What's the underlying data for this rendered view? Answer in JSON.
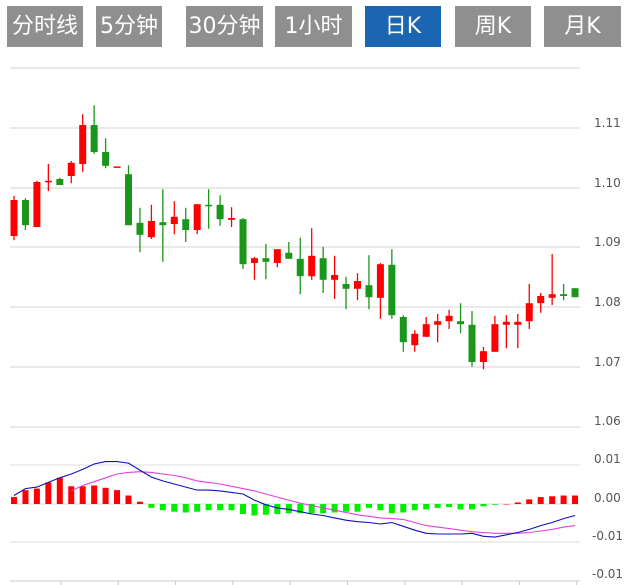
{
  "tabs": [
    {
      "label": "分时线",
      "active": false
    },
    {
      "label": "5分钟",
      "active": false
    },
    {
      "label": "30分钟",
      "active": false
    },
    {
      "label": "1小时",
      "active": false
    },
    {
      "label": "日K",
      "active": true
    },
    {
      "label": "周K",
      "active": false
    },
    {
      "label": "月K",
      "active": false
    }
  ],
  "colors": {
    "tab_bg": "#8f8f8f",
    "tab_active": "#1a66b3",
    "up": "#ff0000",
    "down": "#1a961a",
    "hist_down": "#00ee00",
    "dif": "#1010c0",
    "dea": "#e040e0"
  },
  "chart_data": [
    {
      "type": "candlestick",
      "ylim": [
        1.06,
        1.12
      ],
      "y_ticks": [
        "1.11",
        "1.10",
        "1.09",
        "1.08",
        "1.07",
        "1.06"
      ],
      "grid": true,
      "ohlc": [
        [
          1.092,
          1.0987,
          1.0913,
          1.098
        ],
        [
          1.098,
          1.0983,
          1.093,
          1.0938
        ],
        [
          1.0935,
          1.1012,
          1.0935,
          1.101
        ],
        [
          1.101,
          1.104,
          1.0995,
          1.1012
        ],
        [
          1.1015,
          1.1017,
          1.1005,
          1.1005
        ],
        [
          1.102,
          1.1045,
          1.1008,
          1.1042
        ],
        [
          1.104,
          1.1123,
          1.1027,
          1.1105
        ],
        [
          1.1105,
          1.1138,
          1.1057,
          1.106
        ],
        [
          1.106,
          1.1083,
          1.1033,
          1.1037
        ],
        [
          1.1035,
          1.1036,
          1.1035,
          1.1036
        ],
        [
          1.1023,
          1.1038,
          1.0938,
          1.0938
        ],
        [
          1.0942,
          1.0967,
          1.0893,
          1.0922
        ],
        [
          1.0918,
          1.0972,
          1.0915,
          1.0945
        ],
        [
          1.0943,
          1.0998,
          1.0877,
          1.0938
        ],
        [
          1.094,
          1.0978,
          1.0923,
          1.0952
        ],
        [
          1.0948,
          1.0967,
          1.091,
          1.093
        ],
        [
          1.093,
          1.0973,
          1.0923,
          1.0973
        ],
        [
          1.0972,
          1.0998,
          1.0932,
          1.0971
        ],
        [
          1.0972,
          1.0988,
          1.0937,
          1.0948
        ],
        [
          1.0947,
          1.0968,
          1.0935,
          1.095
        ],
        [
          1.0948,
          1.095,
          1.0865,
          1.0873
        ],
        [
          1.0875,
          1.0885,
          1.0847,
          1.0883
        ],
        [
          1.0883,
          1.0907,
          1.0848,
          1.0877
        ],
        [
          1.0875,
          1.0898,
          1.0868,
          1.0898
        ],
        [
          1.0892,
          1.091,
          1.0882,
          1.0882
        ],
        [
          1.0882,
          1.0917,
          1.0823,
          1.0853
        ],
        [
          1.0853,
          1.0933,
          1.0847,
          1.0887
        ],
        [
          1.0883,
          1.0902,
          1.0825,
          1.0847
        ],
        [
          1.0847,
          1.0887,
          1.0815,
          1.0855
        ],
        [
          1.084,
          1.0852,
          1.0798,
          1.0832
        ],
        [
          1.0832,
          1.0858,
          1.0813,
          1.0845
        ],
        [
          1.0838,
          1.0888,
          1.0798,
          1.0818
        ],
        [
          1.0817,
          1.0875,
          1.0782,
          1.0873
        ],
        [
          1.0872,
          1.0898,
          1.0782,
          1.0788
        ],
        [
          1.0785,
          1.0788,
          1.0727,
          1.0743
        ],
        [
          1.0738,
          1.0763,
          1.0727,
          1.0757
        ],
        [
          1.0752,
          1.0785,
          1.0752,
          1.0773
        ],
        [
          1.0772,
          1.079,
          1.0743,
          1.0778
        ],
        [
          1.0778,
          1.0797,
          1.0765,
          1.0787
        ],
        [
          1.0778,
          1.0808,
          1.0758,
          1.0773
        ],
        [
          1.0772,
          1.0795,
          1.0702,
          1.071
        ],
        [
          1.071,
          1.0735,
          1.0698,
          1.0728
        ],
        [
          1.0727,
          1.0787,
          1.0727,
          1.0773
        ],
        [
          1.0772,
          1.0788,
          1.0733,
          1.0777
        ],
        [
          1.0772,
          1.079,
          1.0733,
          1.0777
        ],
        [
          1.0778,
          1.084,
          1.0765,
          1.0808
        ],
        [
          1.0808,
          1.0825,
          1.0792,
          1.082
        ],
        [
          1.0817,
          1.089,
          1.0805,
          1.0823
        ],
        [
          1.0823,
          1.084,
          1.0813,
          1.082
        ],
        [
          1.0833,
          1.0833,
          1.0818,
          1.0818
        ]
      ]
    },
    {
      "type": "bar+line",
      "ylim": [
        -0.01,
        0.01
      ],
      "y_ticks": [
        "0.01",
        "0.00",
        "-0.01",
        "-0.01"
      ],
      "grid": true,
      "histogram": [
        0.0009,
        0.0018,
        0.002,
        0.0028,
        0.0034,
        0.0023,
        0.0023,
        0.0024,
        0.0021,
        0.0018,
        0.0011,
        0.0003,
        -0.0005,
        -0.0008,
        -0.001,
        -0.0011,
        -0.001,
        -0.0008,
        -0.0008,
        -0.0008,
        -0.0013,
        -0.0015,
        -0.0014,
        -0.0013,
        -0.0012,
        -0.0012,
        -0.0012,
        -0.0012,
        -0.0011,
        -0.001,
        -0.001,
        -0.0005,
        -0.0008,
        -0.0012,
        -0.0011,
        -0.0008,
        -0.0007,
        -0.0005,
        -0.0004,
        -0.0007,
        -0.0007,
        -0.0003,
        -0.0001,
        0,
        0.0002,
        0.0006,
        0.0009,
        0.001,
        0.0011,
        0.0011
      ],
      "dif": [
        0.0011,
        0.002,
        0.0022,
        0.0028,
        0.0034,
        0.0039,
        0.0045,
        0.0052,
        0.0055,
        0.0055,
        0.0053,
        0.0044,
        0.0035,
        0.003,
        0.0026,
        0.0022,
        0.0018,
        0.0018,
        0.0017,
        0.0015,
        0.0013,
        0.0005,
        -0.0001,
        -0.0005,
        -0.0007,
        -0.001,
        -0.0013,
        -0.0015,
        -0.0018,
        -0.0021,
        -0.0023,
        -0.0024,
        -0.0026,
        -0.0024,
        -0.0029,
        -0.0034,
        -0.0038,
        -0.0039,
        -0.0039,
        -0.0039,
        -0.0038,
        -0.0042,
        -0.0043,
        -0.004,
        -0.0037,
        -0.0033,
        -0.0028,
        -0.0024,
        -0.0019,
        -0.0015
      ],
      "dea": [
        null,
        null,
        null,
        null,
        null,
        0.0017,
        0.0024,
        0.0029,
        0.0034,
        0.0039,
        0.0041,
        0.0042,
        0.0041,
        0.0039,
        0.0037,
        0.0034,
        0.003,
        0.0028,
        0.0026,
        0.0023,
        0.002,
        0.0017,
        0.0013,
        0.0009,
        0.0005,
        0.0001,
        -0.0002,
        -0.0005,
        -0.0008,
        -0.0011,
        -0.0014,
        -0.0016,
        -0.0018,
        -0.0019,
        -0.002,
        -0.0024,
        -0.0028,
        -0.003,
        -0.0032,
        -0.0034,
        -0.0036,
        -0.0037,
        -0.0038,
        -0.0038,
        -0.0038,
        -0.0037,
        -0.0035,
        -0.0033,
        -0.003,
        -0.0028
      ]
    }
  ]
}
